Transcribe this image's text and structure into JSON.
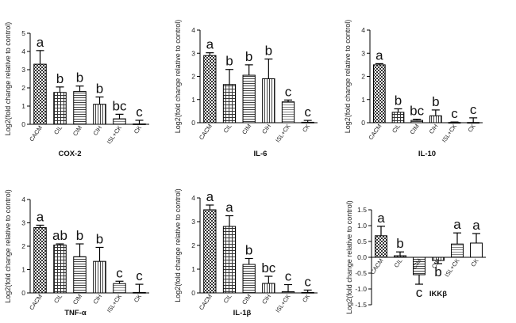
{
  "chart_data": [
    {
      "type": "bar",
      "title": "COX-2",
      "ylabel": "Log2(fold change relative to control)",
      "ylim": [
        0,
        5
      ],
      "yticks": [
        "0",
        "1",
        "2",
        "3",
        "4",
        "5"
      ],
      "categories": [
        "CACM",
        "CIL",
        "CIM",
        "CIH",
        "ISL+CK",
        "CK"
      ],
      "values": [
        3.3,
        1.75,
        1.8,
        1.1,
        0.3,
        0.02
      ],
      "errors": [
        0.75,
        0.3,
        0.3,
        0.4,
        0.25,
        0.2
      ],
      "labels": [
        "a",
        "b",
        "b",
        "b",
        "bc",
        "c"
      ]
    },
    {
      "type": "bar",
      "title": "IL-6",
      "ylabel": "Log2(fold change relative to control)",
      "ylim": [
        0,
        4
      ],
      "yticks": [
        "0",
        "1",
        "2",
        "3",
        "4"
      ],
      "categories": [
        "CACM",
        "CIL",
        "CIM",
        "CIH",
        "ISL+CK",
        "CK"
      ],
      "values": [
        2.9,
        1.65,
        2.05,
        1.9,
        0.9,
        0.02
      ],
      "errors": [
        0.12,
        0.65,
        0.45,
        0.85,
        0.08,
        0.08
      ],
      "labels": [
        "a",
        "b",
        "b",
        "b",
        "c",
        "c"
      ]
    },
    {
      "type": "bar",
      "title": "IL-10",
      "ylabel": "Log2(fold change relative to control)",
      "ylim": [
        0,
        4
      ],
      "yticks": [
        "0",
        "1",
        "2",
        "3",
        "4"
      ],
      "categories": [
        "CACM",
        "CIL",
        "CIM",
        "CIH",
        "ISL+CK",
        "CK"
      ],
      "values": [
        2.5,
        0.45,
        0.1,
        0.3,
        0.01,
        0.01
      ],
      "errors": [
        0.05,
        0.15,
        0.05,
        0.25,
        0.02,
        0.2
      ],
      "labels": [
        "a",
        "b",
        "bc",
        "b",
        "c",
        "c"
      ]
    },
    {
      "type": "bar",
      "title": "TNF-α",
      "ylabel": "Log2(fold change relative to control)",
      "ylim": [
        0,
        4
      ],
      "yticks": [
        "0",
        "1",
        "2",
        "3",
        "4"
      ],
      "categories": [
        "CACM",
        "CIL",
        "CIM",
        "CIH",
        "ISL+CK",
        "CK"
      ],
      "values": [
        2.8,
        2.05,
        1.55,
        1.35,
        0.4,
        0.02
      ],
      "errors": [
        0.1,
        0.05,
        0.55,
        0.6,
        0.1,
        0.35
      ],
      "labels": [
        "a",
        "ab",
        "b",
        "b",
        "c",
        "c"
      ]
    },
    {
      "type": "bar",
      "title": "IL-1β",
      "ylabel": "Log2(fold change relative to control)",
      "ylim": [
        0,
        4
      ],
      "yticks": [
        "0",
        "1",
        "2",
        "3",
        "4"
      ],
      "categories": [
        "CACM",
        "CIL",
        "CIM",
        "CIH",
        "ISL+CK",
        "CK"
      ],
      "values": [
        3.5,
        2.8,
        1.2,
        0.4,
        0.05,
        0.02
      ],
      "errors": [
        0.2,
        0.45,
        0.25,
        0.3,
        0.3,
        0.1
      ],
      "labels": [
        "a",
        "a",
        "b",
        "bc",
        "c",
        "c"
      ]
    },
    {
      "type": "bar",
      "title": "IKKβ",
      "ylabel": "Log2(fold change relative to control)",
      "ylim": [
        -1.5,
        1.5
      ],
      "yticks": [
        "-1.5",
        "-1.0",
        "-0.5",
        "0.0",
        "0.5",
        "1.0",
        "1.5"
      ],
      "categories": [
        "CACM",
        "CIL",
        "CIM",
        "CIH",
        "ISL+CK",
        "CK"
      ],
      "values": [
        0.68,
        0.05,
        -0.55,
        -0.1,
        0.42,
        0.45
      ],
      "errors": [
        0.3,
        0.12,
        0.3,
        0.1,
        0.35,
        0.3
      ],
      "labels": [
        "a",
        "b",
        "c",
        "b",
        "a",
        "a"
      ]
    }
  ]
}
